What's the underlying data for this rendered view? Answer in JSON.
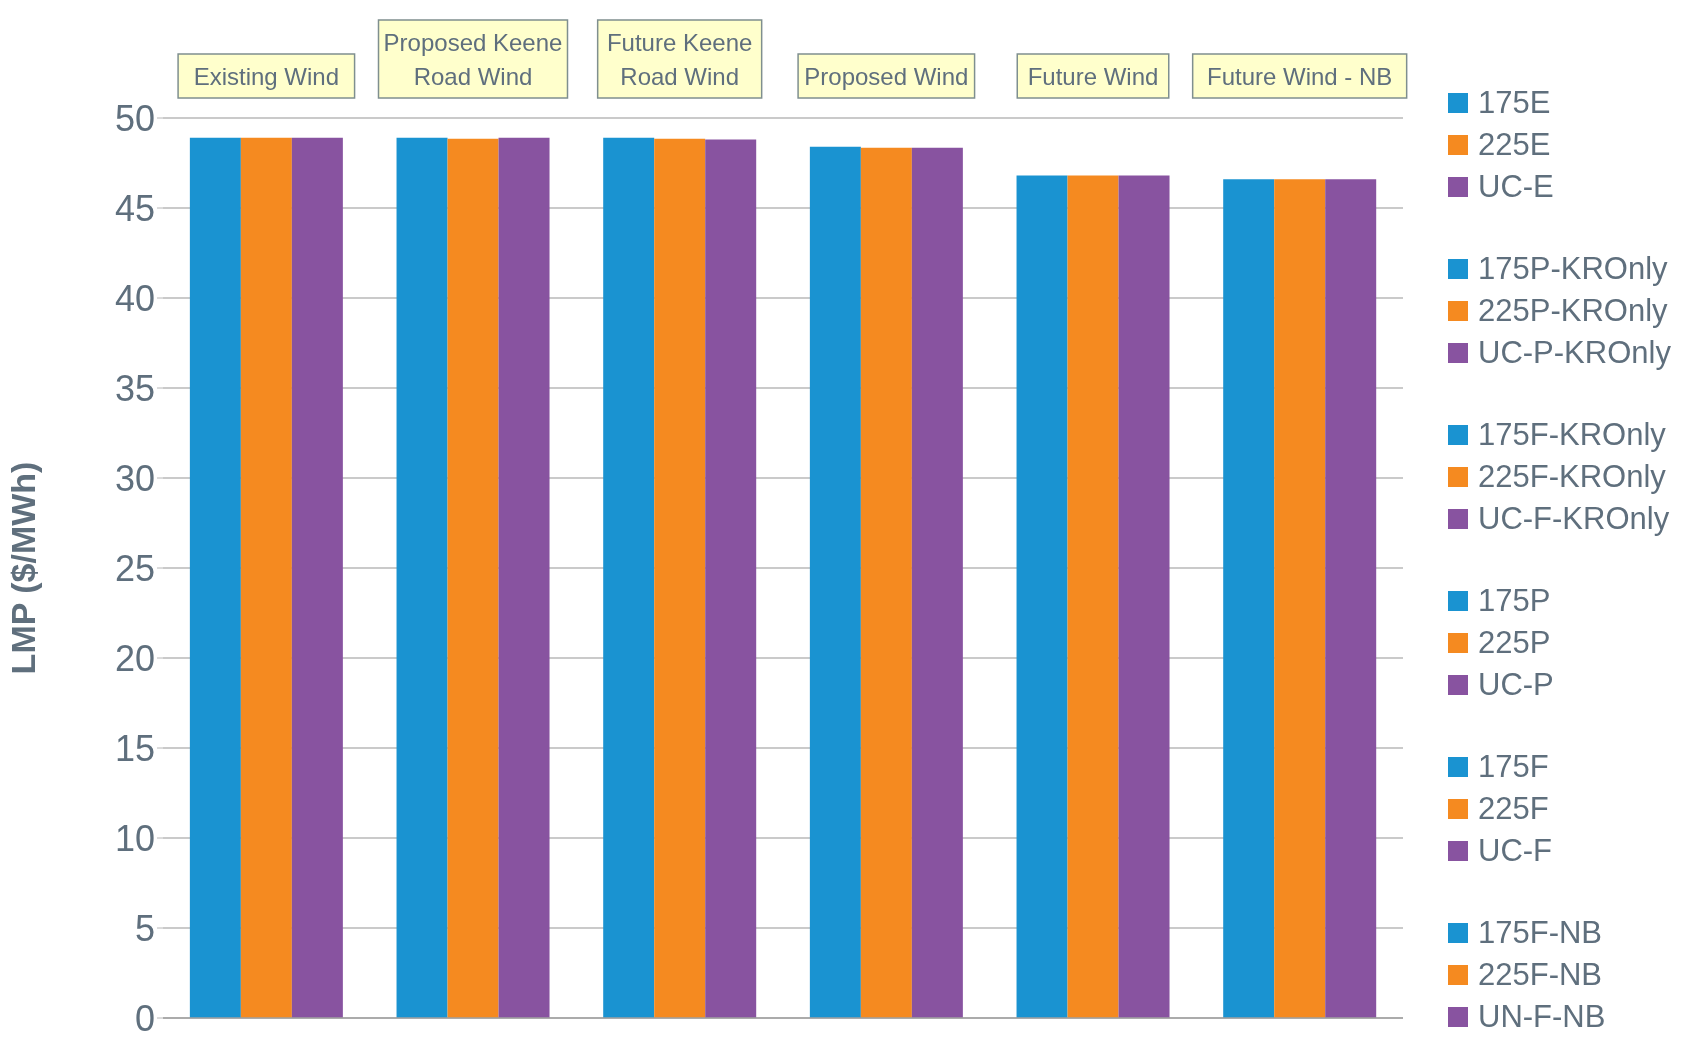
{
  "chart_data": {
    "type": "bar",
    "ylabel": "LMP ($/MWh)",
    "categories": [
      "Existing Wind",
      "Proposed Keene Road Wind",
      "Future Keene Road Wind",
      "Proposed Wind",
      "Future Wind",
      "Future Wind - NB"
    ],
    "series": [
      {
        "name": "175E",
        "color": "#1a93d1",
        "values": [
          48.9,
          null,
          null,
          null,
          null,
          null
        ]
      },
      {
        "name": "225E",
        "color": "#f58a20",
        "values": [
          48.9,
          null,
          null,
          null,
          null,
          null
        ]
      },
      {
        "name": "UC-E",
        "color": "#8853a0",
        "values": [
          48.9,
          null,
          null,
          null,
          null,
          null
        ]
      },
      {
        "name": "175P-KROnly",
        "color": "#1a93d1",
        "values": [
          null,
          48.9,
          null,
          null,
          null,
          null
        ]
      },
      {
        "name": "225P-KROnly",
        "color": "#f58a20",
        "values": [
          null,
          48.85,
          null,
          null,
          null,
          null
        ]
      },
      {
        "name": "UC-P-KROnly",
        "color": "#8853a0",
        "values": [
          null,
          48.9,
          null,
          null,
          null,
          null
        ]
      },
      {
        "name": "175F-KROnly",
        "color": "#1a93d1",
        "values": [
          null,
          null,
          48.9,
          null,
          null,
          null
        ]
      },
      {
        "name": "225F-KROnly",
        "color": "#f58a20",
        "values": [
          null,
          null,
          48.85,
          null,
          null,
          null
        ]
      },
      {
        "name": "UC-F-KROnly",
        "color": "#8853a0",
        "values": [
          null,
          null,
          48.8,
          null,
          null,
          null
        ]
      },
      {
        "name": "175P",
        "color": "#1a93d1",
        "values": [
          null,
          null,
          null,
          48.4,
          null,
          null
        ]
      },
      {
        "name": "225P",
        "color": "#f58a20",
        "values": [
          null,
          null,
          null,
          48.35,
          null,
          null
        ]
      },
      {
        "name": "UC-P",
        "color": "#8853a0",
        "values": [
          null,
          null,
          null,
          48.35,
          null,
          null
        ]
      },
      {
        "name": "175F",
        "color": "#1a93d1",
        "values": [
          null,
          null,
          null,
          null,
          46.8,
          null
        ]
      },
      {
        "name": "225F",
        "color": "#f58a20",
        "values": [
          null,
          null,
          null,
          null,
          46.8,
          null
        ]
      },
      {
        "name": "UC-F",
        "color": "#8853a0",
        "values": [
          null,
          null,
          null,
          null,
          46.8,
          null
        ]
      },
      {
        "name": "175F-NB",
        "color": "#1a93d1",
        "values": [
          null,
          null,
          null,
          null,
          null,
          46.6
        ]
      },
      {
        "name": "225F-NB",
        "color": "#f58a20",
        "values": [
          null,
          null,
          null,
          null,
          null,
          46.6
        ]
      },
      {
        "name": "UN-F-NB",
        "color": "#8853a0",
        "values": [
          null,
          null,
          null,
          null,
          null,
          46.6
        ]
      }
    ],
    "ylim": [
      0,
      50
    ],
    "yticks": [
      0,
      5,
      10,
      15,
      20,
      25,
      30,
      35,
      40,
      45,
      50
    ],
    "grid": "y",
    "legend": "right"
  }
}
